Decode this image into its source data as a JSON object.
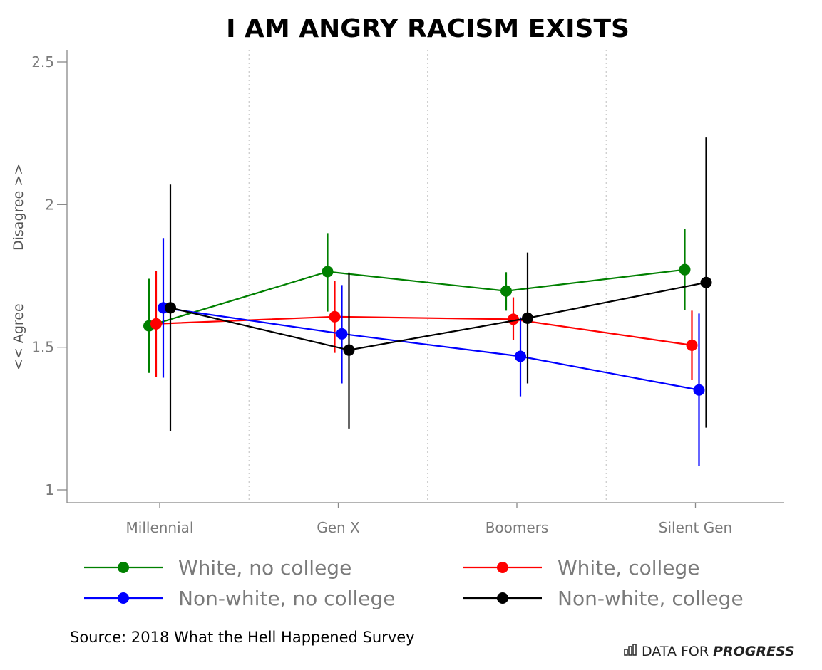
{
  "chart_data": {
    "type": "line",
    "title": "I AM ANGRY RACISM EXISTS",
    "ylabel_top": "Disagree >>",
    "ylabel_bottom": "<<  Agree",
    "xlabel": "",
    "categories": [
      "Millennial",
      "Gen X",
      "Boomers",
      "Silent Gen"
    ],
    "ylim": [
      0.96,
      2.54
    ],
    "yticks": [
      1,
      1.5,
      2,
      2.5
    ],
    "ytick_labels": [
      "1",
      "1.5",
      "2",
      "2.5"
    ],
    "grid": "dotted vertical separators between categories",
    "legend_position": "bottom",
    "series": [
      {
        "name": "White, no college",
        "color": "#008000",
        "values": [
          1.575,
          1.765,
          1.697,
          1.772
        ],
        "lower": [
          1.41,
          1.625,
          1.628,
          1.63
        ],
        "upper": [
          1.74,
          1.9,
          1.763,
          1.915
        ]
      },
      {
        "name": "White, college",
        "color": "#ff0000",
        "values": [
          1.582,
          1.607,
          1.598,
          1.507
        ],
        "lower": [
          1.395,
          1.48,
          1.525,
          1.385
        ],
        "upper": [
          1.767,
          1.732,
          1.675,
          1.628
        ]
      },
      {
        "name": "Non-white, no college",
        "color": "#0000ff",
        "values": [
          1.638,
          1.547,
          1.468,
          1.35
        ],
        "lower": [
          1.393,
          1.373,
          1.328,
          1.083
        ],
        "upper": [
          1.883,
          1.718,
          1.605,
          1.618
        ]
      },
      {
        "name": "Non-white, college",
        "color": "#000000",
        "values": [
          1.638,
          1.49,
          1.602,
          1.727
        ],
        "lower": [
          1.205,
          1.215,
          1.373,
          1.218
        ],
        "upper": [
          2.07,
          1.762,
          1.832,
          2.235
        ]
      }
    ]
  },
  "footer": {
    "source": "Source: 2018 What the Hell Happened Survey",
    "brand_regular": "DATA FOR ",
    "brand_bold": "PROGRESS"
  },
  "icons": {
    "brand": "bar-chart-icon"
  }
}
